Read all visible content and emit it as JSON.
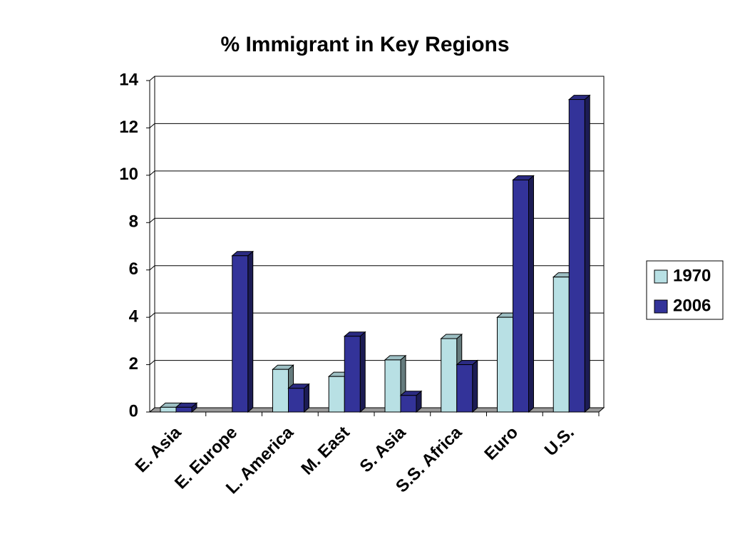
{
  "chart_data": {
    "type": "bar",
    "title": "% Immigrant in Key Regions",
    "categories": [
      "E. Asia",
      "E. Europe",
      "L. America",
      "M. East",
      "S. Asia",
      "S.S. Africa",
      "Euro",
      "U.S."
    ],
    "series": [
      {
        "name": "1970",
        "color": "#b8e0e4",
        "values": [
          0.2,
          null,
          1.8,
          1.5,
          2.2,
          3.1,
          4.0,
          5.7
        ]
      },
      {
        "name": "2006",
        "color": "#333399",
        "values": [
          0.2,
          6.6,
          1.0,
          3.2,
          0.7,
          2.0,
          9.8,
          13.2
        ]
      }
    ],
    "ylim": [
      0,
      14
    ],
    "yticks": [
      0,
      2,
      4,
      6,
      8,
      10,
      12,
      14
    ],
    "grid": true,
    "legend": "right"
  }
}
